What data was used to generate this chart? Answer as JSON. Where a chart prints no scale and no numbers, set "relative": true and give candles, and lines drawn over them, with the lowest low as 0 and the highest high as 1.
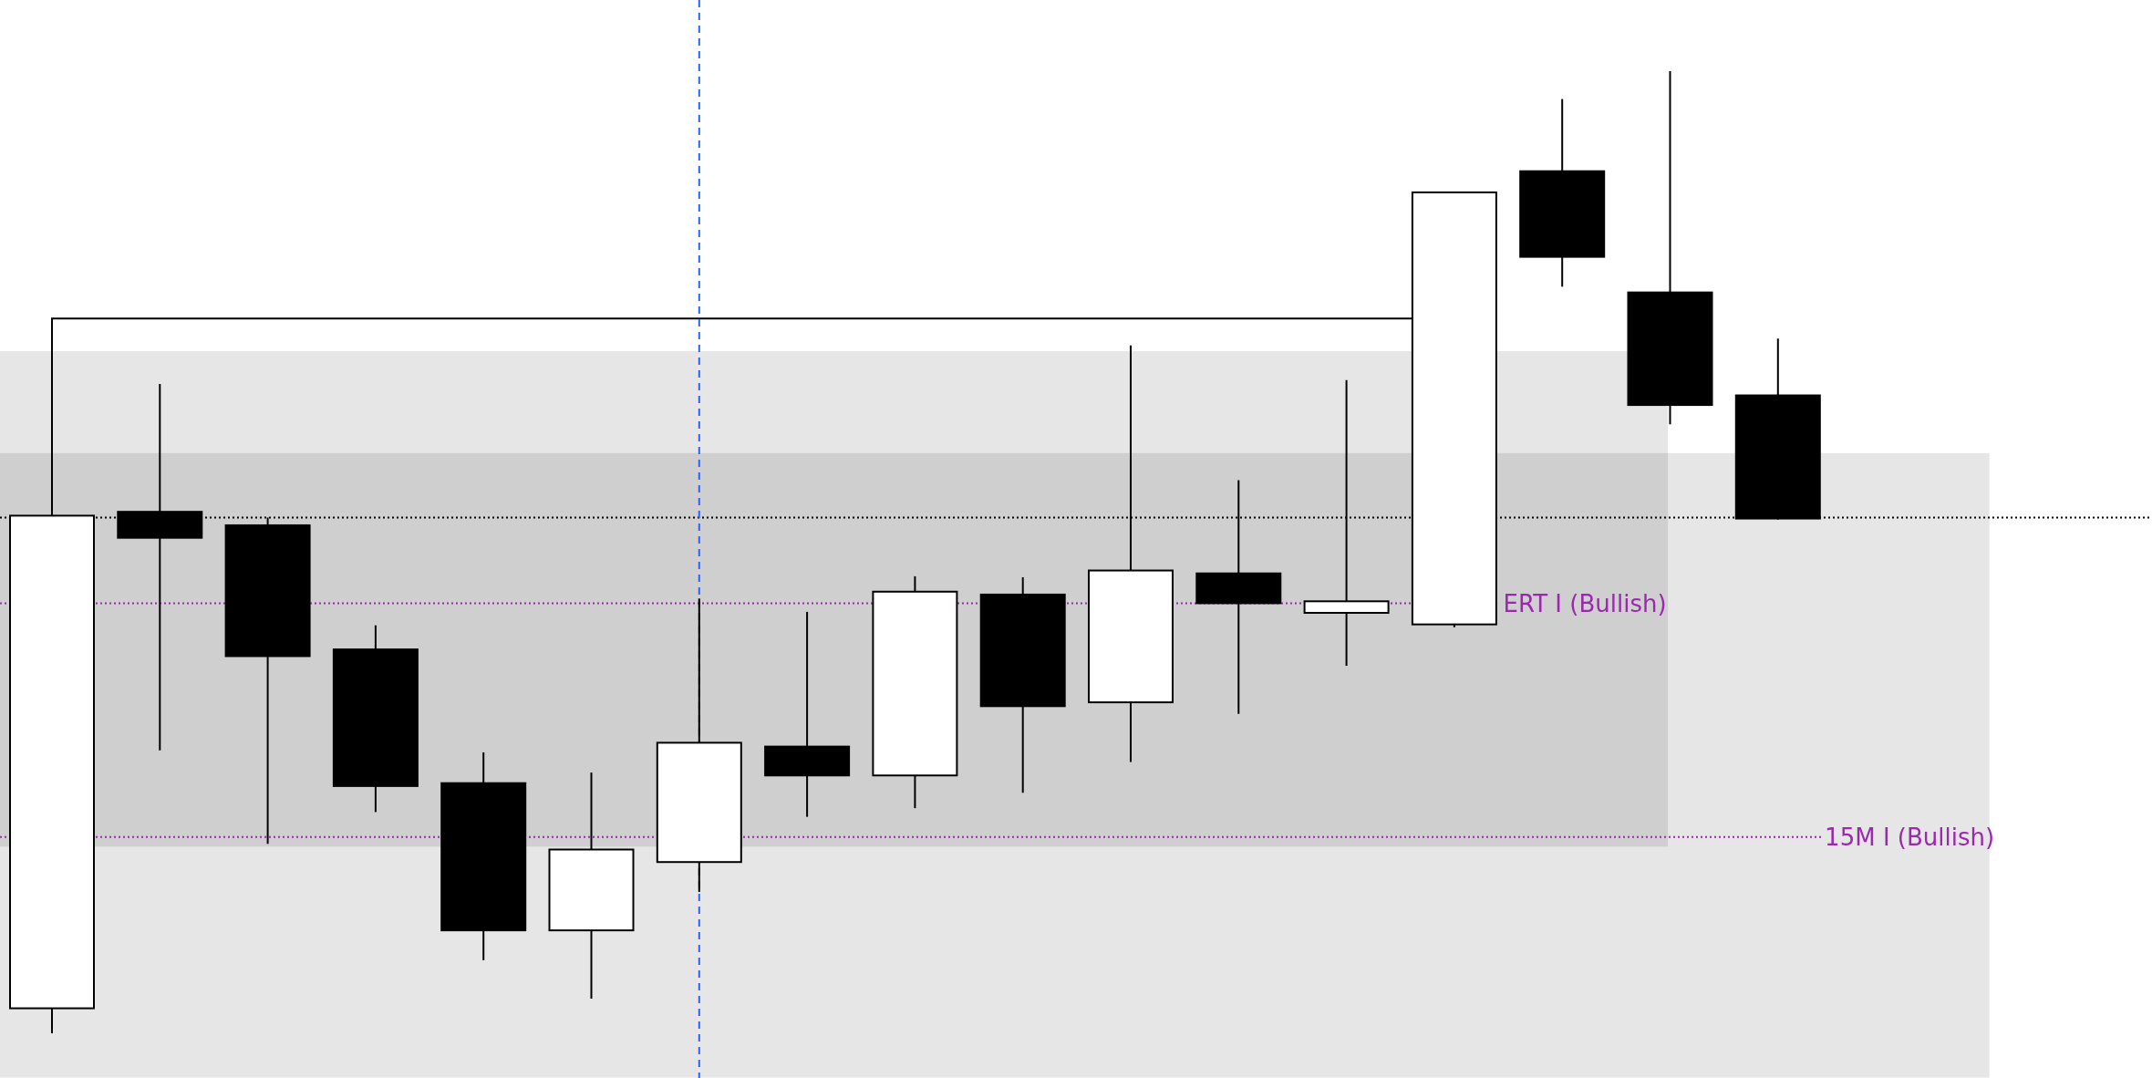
{
  "chart_data": {
    "type": "candlestick",
    "relative": true,
    "categories": [
      null,
      null,
      null,
      null,
      null,
      null,
      null,
      null,
      null,
      null,
      null,
      null,
      null,
      null,
      null,
      null,
      null
    ],
    "ohlc": [
      [
        0.026,
        0.538,
        0,
        0.538
      ],
      [
        0.542,
        0.675,
        0.294,
        0.515
      ],
      [
        0.528,
        0.536,
        0.197,
        0.392
      ],
      [
        0.399,
        0.424,
        0.23,
        0.257
      ],
      [
        0.26,
        0.292,
        0.076,
        0.107
      ],
      [
        0.107,
        0.271,
        0.036,
        0.191
      ],
      [
        0.178,
        0.452,
        0.147,
        0.302
      ],
      [
        0.298,
        0.438,
        0.225,
        0.268
      ],
      [
        0.268,
        0.475,
        0.234,
        0.459
      ],
      [
        0.456,
        0.474,
        0.25,
        0.34
      ],
      [
        0.344,
        0.715,
        0.282,
        0.481
      ],
      [
        0.478,
        0.575,
        0.332,
        0.447
      ],
      [
        0.437,
        0.679,
        0.382,
        0.449
      ],
      [
        0.425,
        0.874,
        0.422,
        0.874
      ],
      [
        0.896,
        0.971,
        0.776,
        0.807
      ],
      [
        0.77,
        1,
        0.633,
        0.653
      ],
      [
        0.663,
        0.722,
        0.534,
        0.535
      ]
    ],
    "bands": [
      {
        "axis": "y",
        "from": 0.194,
        "to": 0.709,
        "color": "#e6e6e6"
      },
      {
        "axis": "y",
        "from": -0.046,
        "to": 0.603,
        "color": "#e6e6e6"
      }
    ],
    "ref_lines": [
      {
        "axis": "y",
        "value": 0.743,
        "color": "#000000",
        "line_style": "solid"
      },
      {
        "axis": "y",
        "value": 0.536,
        "color": "#000000",
        "line_style": "dotted"
      },
      {
        "axis": "y",
        "value": 0.447,
        "label": "ERT I (Bullish)",
        "color": "#9c27b0",
        "line_style": "dotted"
      },
      {
        "axis": "y",
        "value": 0.204,
        "label": "15M I (Bullish)",
        "color": "#9c27b0",
        "line_style": "dotted"
      }
    ]
  }
}
